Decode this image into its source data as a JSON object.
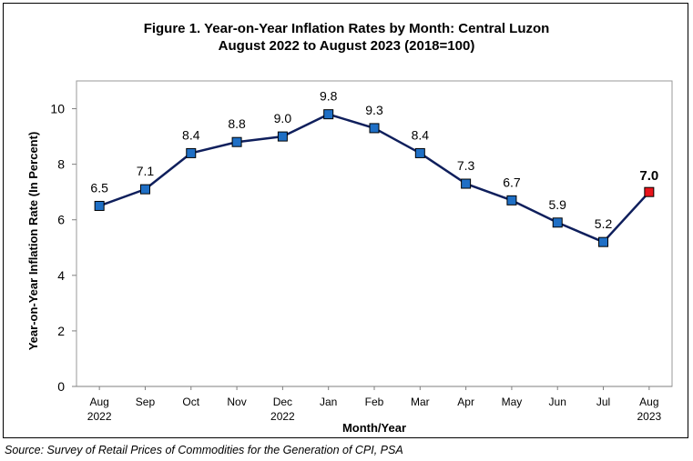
{
  "chart_data": {
    "type": "line",
    "title": "Figure 1.  Year-on-Year Inflation Rates by Month: Central Luzon",
    "subtitle": "August 2022 to August 2023 (2018=100)",
    "xlabel": "Month/Year",
    "ylabel": "Year-on-Year Inflation Rate (In Percent)",
    "ylim": [
      0,
      11
    ],
    "yticks": [
      "0",
      "2",
      "4",
      "6",
      "8",
      "10"
    ],
    "grid": false,
    "categories": [
      {
        "month": "Aug",
        "year": "2022"
      },
      {
        "month": "Sep",
        "year": ""
      },
      {
        "month": "Oct",
        "year": ""
      },
      {
        "month": "Nov",
        "year": ""
      },
      {
        "month": "Dec",
        "year": "2022"
      },
      {
        "month": "Jan",
        "year": ""
      },
      {
        "month": "Feb",
        "year": ""
      },
      {
        "month": "Mar",
        "year": ""
      },
      {
        "month": "Apr",
        "year": ""
      },
      {
        "month": "May",
        "year": ""
      },
      {
        "month": "Jun",
        "year": ""
      },
      {
        "month": "Jul",
        "year": ""
      },
      {
        "month": "Aug",
        "year": "2023"
      }
    ],
    "series": [
      {
        "values": [
          6.5,
          7.1,
          8.4,
          8.8,
          9.0,
          9.8,
          9.3,
          8.4,
          7.3,
          6.7,
          5.9,
          5.2,
          7.0
        ],
        "labels": [
          "6.5",
          "7.1",
          "8.4",
          "8.8",
          "9.0",
          "9.8",
          "9.3",
          "8.4",
          "7.3",
          "6.7",
          "5.9",
          "5.2",
          "7.0"
        ],
        "line_color": "#0f1f5c",
        "marker_color": "#1f6fc5",
        "highlight_marker_color": "#e8141b",
        "highlight_index": 12
      }
    ]
  },
  "source": "Source: Survey of Retail Prices of Commodities for the Generation of CPI, PSA"
}
